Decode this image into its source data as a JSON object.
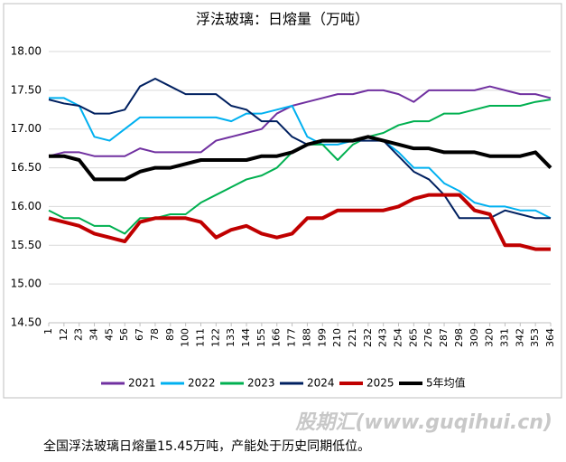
{
  "chart_data": {
    "type": "line",
    "title": "浮法玻璃：日熔量（万吨）",
    "x": [
      1,
      12,
      23,
      34,
      45,
      56,
      67,
      78,
      89,
      100,
      111,
      122,
      133,
      144,
      155,
      166,
      177,
      188,
      199,
      210,
      221,
      232,
      243,
      254,
      265,
      276,
      287,
      298,
      309,
      320,
      331,
      342,
      353,
      364
    ],
    "xlim": [
      1,
      364
    ],
    "xticks": [
      1,
      12,
      23,
      34,
      45,
      56,
      67,
      78,
      89,
      100,
      111,
      122,
      133,
      144,
      155,
      166,
      177,
      188,
      199,
      210,
      221,
      232,
      243,
      254,
      265,
      276,
      287,
      298,
      309,
      320,
      331,
      342,
      353,
      364
    ],
    "ylim": [
      14.5,
      18
    ],
    "yticks": [
      {
        "value": 14.5,
        "label": "14.50"
      },
      {
        "value": 15,
        "label": "15.00"
      },
      {
        "value": 15.5,
        "label": "15.50"
      },
      {
        "value": 16,
        "label": "16.00"
      },
      {
        "value": 16.5,
        "label": "16.50"
      },
      {
        "value": 17,
        "label": "17.00"
      },
      {
        "value": 17.5,
        "label": "17.50"
      },
      {
        "value": 18,
        "label": "18.00"
      }
    ],
    "grid": true,
    "series": [
      {
        "name": "2021",
        "color": "#7030a0",
        "values": [
          16.65,
          16.7,
          16.7,
          16.65,
          16.65,
          16.65,
          16.75,
          16.7,
          16.7,
          16.7,
          16.7,
          16.85,
          16.9,
          16.95,
          17.0,
          17.2,
          17.3,
          17.35,
          17.4,
          17.45,
          17.45,
          17.5,
          17.5,
          17.45,
          17.35,
          17.5,
          17.5,
          17.5,
          17.5,
          17.55,
          17.5,
          17.45,
          17.45,
          17.4
        ]
      },
      {
        "name": "2022",
        "color": "#00b0f0",
        "values": [
          17.4,
          17.4,
          17.3,
          16.9,
          16.85,
          17.0,
          17.15,
          17.15,
          17.15,
          17.15,
          17.15,
          17.15,
          17.1,
          17.2,
          17.2,
          17.25,
          17.3,
          16.9,
          16.8,
          16.8,
          16.85,
          16.9,
          16.85,
          16.7,
          16.5,
          16.5,
          16.3,
          16.2,
          16.05,
          16.0,
          16.0,
          15.95,
          15.95,
          15.85
        ]
      },
      {
        "name": "2023",
        "color": "#00b050",
        "values": [
          15.95,
          15.85,
          15.85,
          15.75,
          15.75,
          15.65,
          15.85,
          15.85,
          15.9,
          15.9,
          16.05,
          16.15,
          16.25,
          16.35,
          16.4,
          16.5,
          16.7,
          16.8,
          16.8,
          16.6,
          16.8,
          16.9,
          16.95,
          17.05,
          17.1,
          17.1,
          17.2,
          17.2,
          17.25,
          17.3,
          17.3,
          17.3,
          17.35,
          17.38
        ]
      },
      {
        "name": "2024",
        "color": "#002060",
        "values": [
          17.38,
          17.33,
          17.3,
          17.2,
          17.2,
          17.25,
          17.55,
          17.65,
          17.55,
          17.45,
          17.45,
          17.45,
          17.3,
          17.25,
          17.1,
          17.1,
          16.9,
          16.8,
          16.85,
          16.85,
          16.85,
          16.85,
          16.85,
          16.65,
          16.45,
          16.35,
          16.15,
          15.85,
          15.85,
          15.85,
          15.95,
          15.9,
          15.85,
          15.85
        ]
      },
      {
        "name": "2025",
        "color": "#c00000",
        "values": [
          15.85,
          15.8,
          15.75,
          15.65,
          15.6,
          15.55,
          15.8,
          15.85,
          15.85,
          15.85,
          15.8,
          15.6,
          15.7,
          15.75,
          15.65,
          15.6,
          15.65,
          15.85,
          15.85,
          15.95,
          15.95,
          15.95,
          15.95,
          16.0,
          16.1,
          16.15,
          16.15,
          16.15,
          15.95,
          15.9,
          15.5,
          15.5,
          15.45,
          15.45
        ]
      },
      {
        "name": "5年均值",
        "color": "#000000",
        "values": [
          16.65,
          16.65,
          16.6,
          16.35,
          16.35,
          16.35,
          16.45,
          16.5,
          16.5,
          16.55,
          16.6,
          16.6,
          16.6,
          16.6,
          16.65,
          16.65,
          16.7,
          16.8,
          16.85,
          16.85,
          16.85,
          16.9,
          16.85,
          16.8,
          16.75,
          16.75,
          16.7,
          16.7,
          16.7,
          16.65,
          16.65,
          16.65,
          16.7,
          16.5
        ]
      }
    ]
  },
  "watermark": "股期汇(www.guqihui.cn)",
  "caption": "全国浮法玻璃日熔量15.45万吨，产能处于历史同期低位。"
}
